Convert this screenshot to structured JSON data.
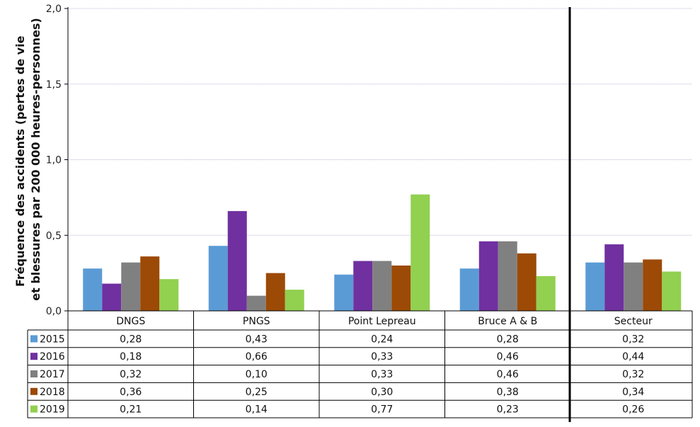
{
  "chart_data": {
    "type": "bar",
    "ylabel_lines": [
      "Fréquence des accidents (pertes de vie",
      "et blessures par 200 000 heures-personnes)"
    ],
    "ylim": [
      0,
      2.0
    ],
    "yticks": [
      "0,0",
      "0,5",
      "1,0",
      "1,5",
      "2,0"
    ],
    "ytick_values": [
      0,
      0.5,
      1.0,
      1.5,
      2.0
    ],
    "grid": true,
    "legend": "data-table-left",
    "categories": [
      "DNGS",
      "PNGS",
      "Point Lepreau",
      "Bruce A & B",
      "Secteur"
    ],
    "series": [
      {
        "name": "2015",
        "color": "#5b9bd5",
        "values": [
          0.28,
          0.43,
          0.24,
          0.28,
          0.32
        ],
        "labels": [
          "0,28",
          "0,43",
          "0,24",
          "0,28",
          "0,32"
        ]
      },
      {
        "name": "2016",
        "color": "#7030a0",
        "values": [
          0.18,
          0.66,
          0.33,
          0.46,
          0.44
        ],
        "labels": [
          "0,18",
          "0,66",
          "0,33",
          "0,46",
          "0,44"
        ]
      },
      {
        "name": "2017",
        "color": "#808080",
        "values": [
          0.32,
          0.1,
          0.33,
          0.46,
          0.32
        ],
        "labels": [
          "0,32",
          "0,10",
          "0,33",
          "0,46",
          "0,32"
        ]
      },
      {
        "name": "2018",
        "color": "#9c4a06",
        "values": [
          0.36,
          0.25,
          0.3,
          0.38,
          0.34
        ],
        "labels": [
          "0,36",
          "0,25",
          "0,30",
          "0,38",
          "0,34"
        ]
      },
      {
        "name": "2019",
        "color": "#92d050",
        "values": [
          0.21,
          0.14,
          0.77,
          0.23,
          0.26
        ],
        "labels": [
          "0,21",
          "0,14",
          "0,77",
          "0,23",
          "0,26"
        ]
      }
    ]
  }
}
